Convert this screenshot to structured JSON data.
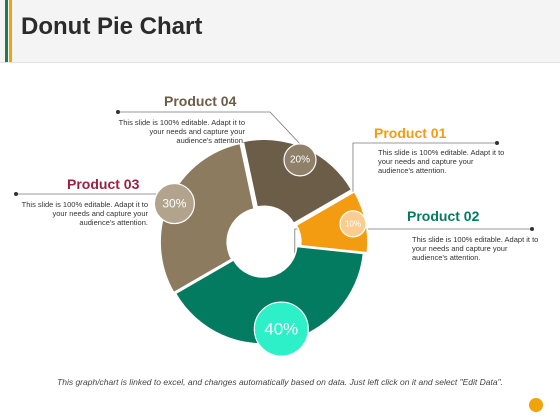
{
  "slide": {
    "title": "Donut Pie Chart",
    "footer": "This graph/chart is linked to excel, and changes automatically based on data. Just left click on it and select \"Edit Data\"."
  },
  "chart_data": {
    "type": "pie",
    "title": "",
    "slices": [
      {
        "label": "Product 01",
        "value": 10,
        "value_label": "10%",
        "color": "#f39c12",
        "bubble_color": "#f9cc8f",
        "title_color": "#f39c12",
        "description": "This slide is 100% editable. Adapt it to your needs and capture your audience's attention."
      },
      {
        "label": "Product 02",
        "value": 40,
        "value_label": "40%",
        "color": "#037b60",
        "bubble_color": "#2ef0c8",
        "title_color": "#037b60",
        "description": "This slide is 100% editable. Adapt it to your needs and capture your audience's attention."
      },
      {
        "label": "Product 03",
        "value": 30,
        "value_label": "30%",
        "color": "#8c7b5e",
        "bubble_color": "#b2a48c",
        "title_color": "#9e1f3f",
        "description": "This slide is 100% editable. Adapt it to your needs and capture your audience's attention."
      },
      {
        "label": "Product 04",
        "value": 20,
        "value_label": "20%",
        "color": "#6b5d48",
        "bubble_color": "#8f806a",
        "title_color": "#6b5d48",
        "description": "This slide is 100% editable. Adapt it to your needs and capture your audience's attention."
      }
    ],
    "legend": "none"
  },
  "colors": {
    "accent_green": "#1f7a52",
    "accent_orange": "#f0a30a",
    "title_text": "#2b2b2b"
  }
}
